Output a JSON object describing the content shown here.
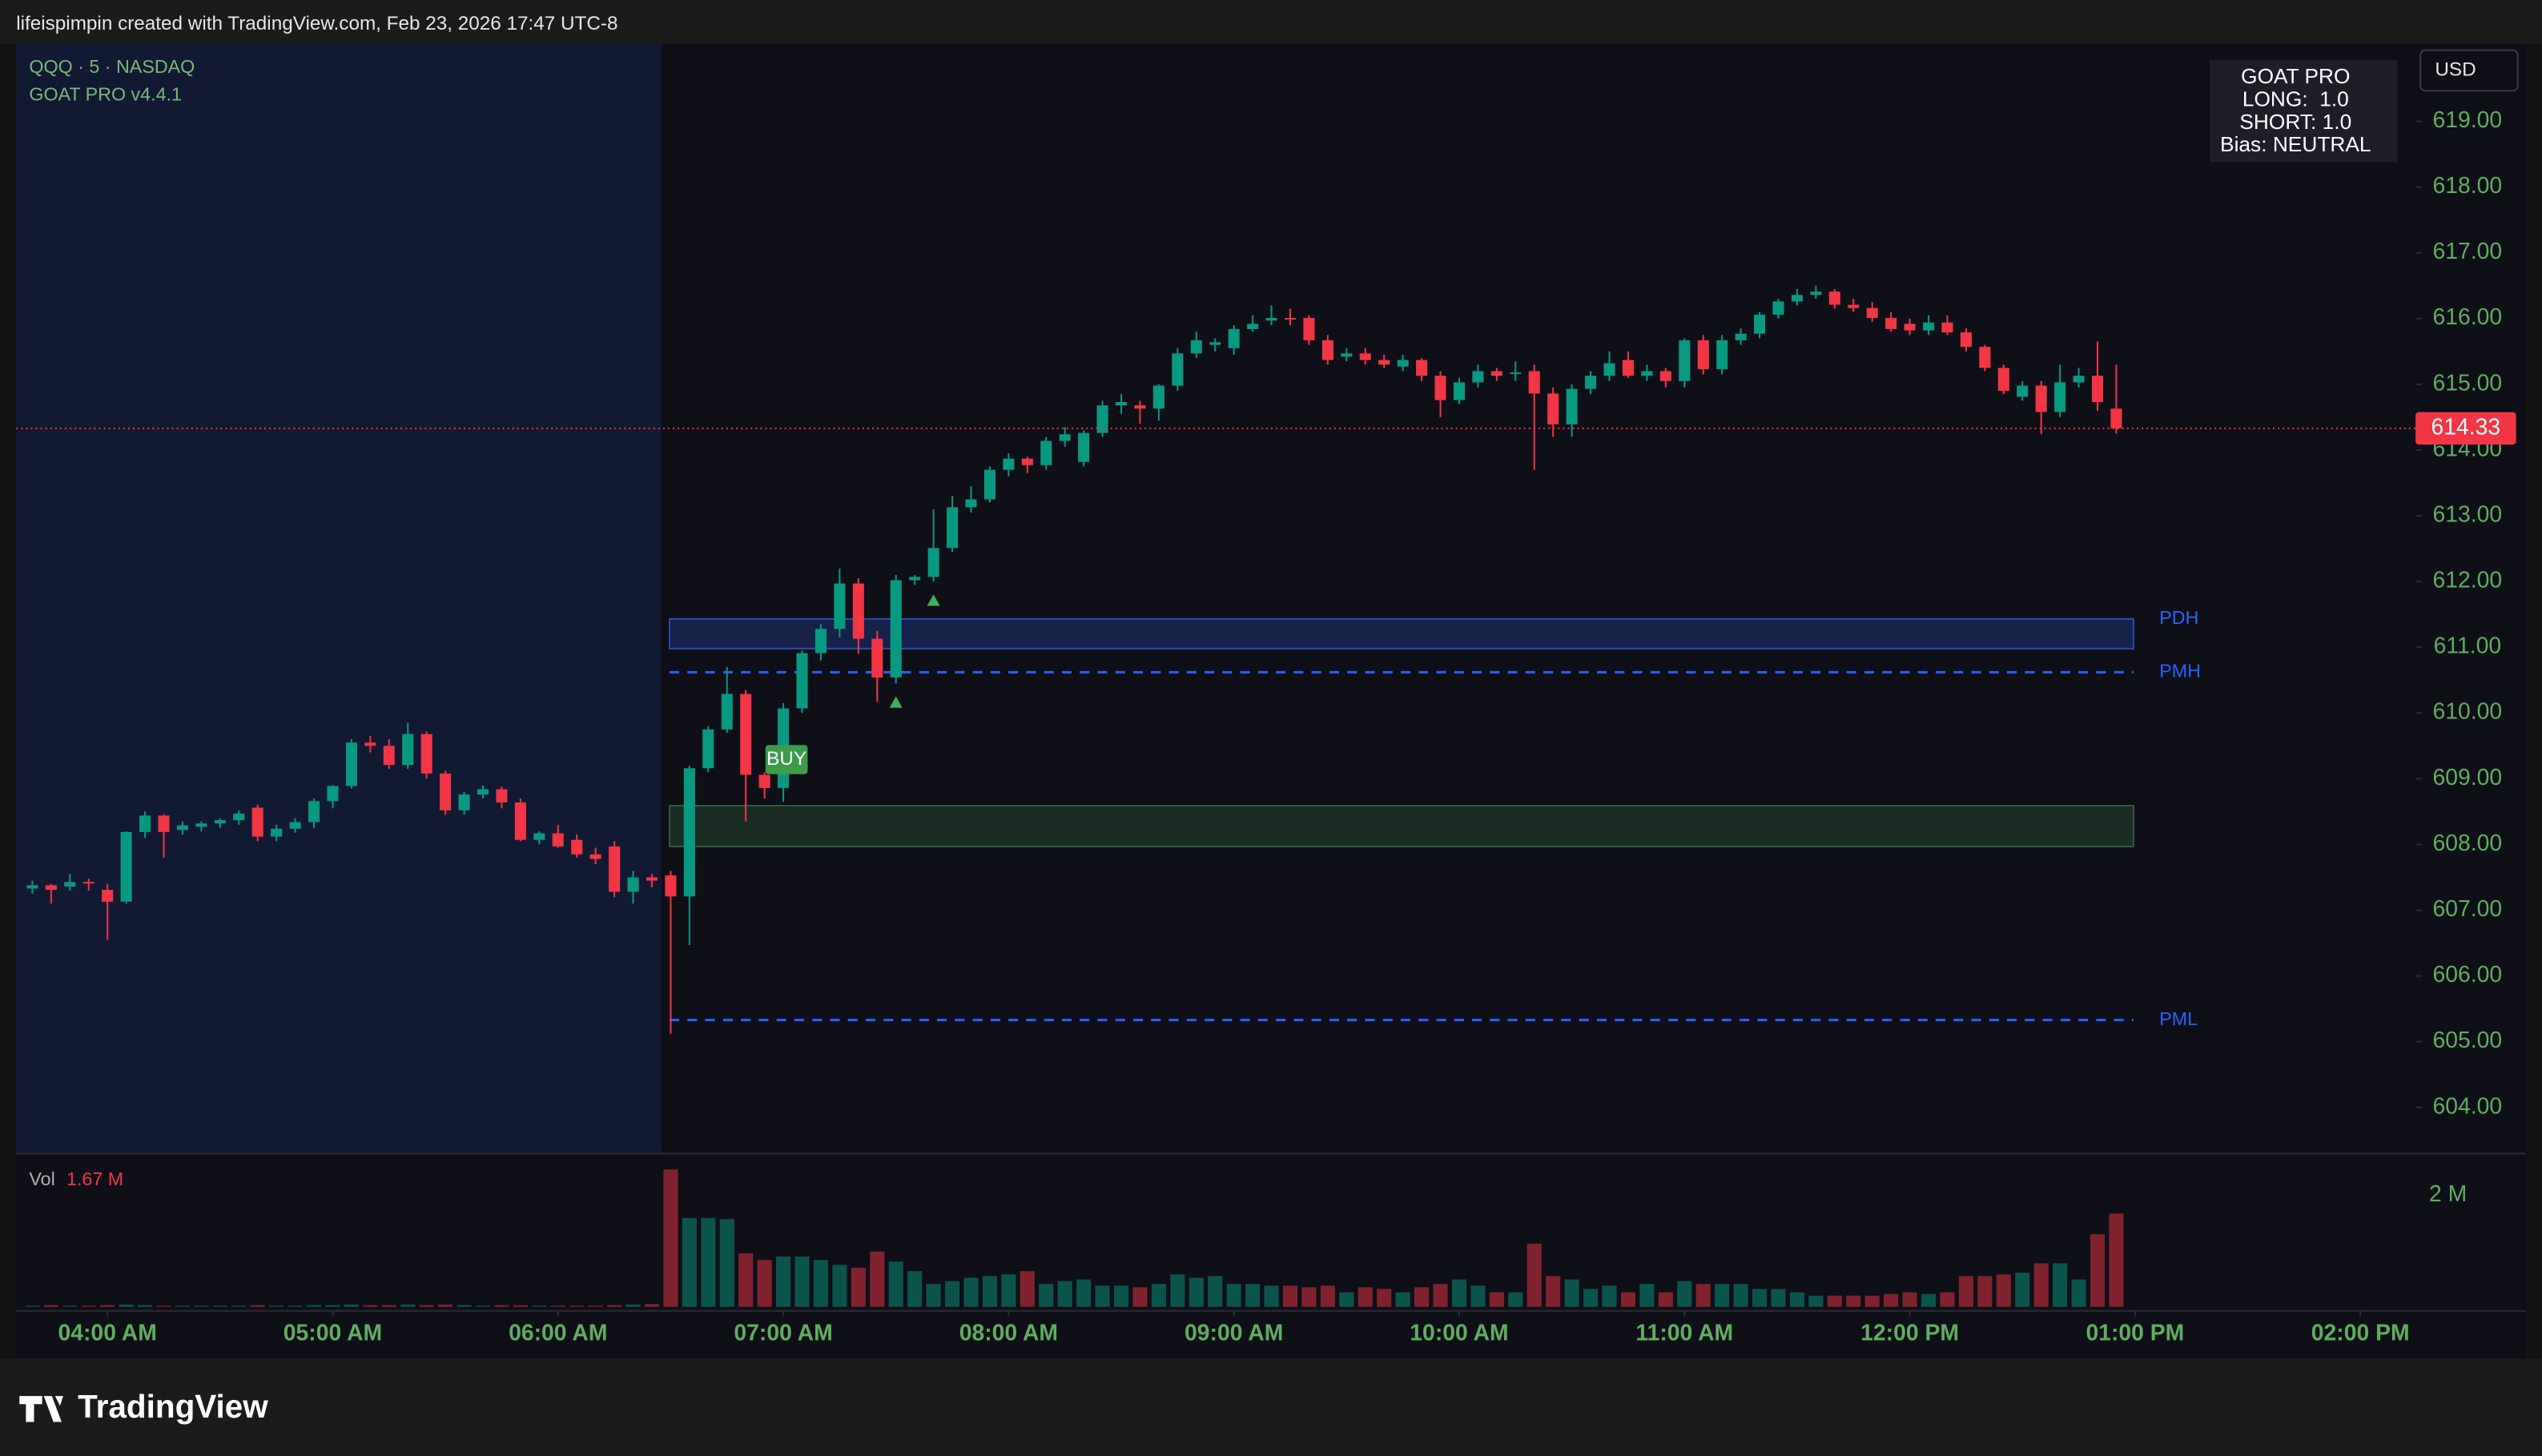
{
  "header": "lifeispimpin created with TradingView.com, Feb 23, 2026 17:47 UTC-8",
  "footer_logo": "TradingView",
  "chart_data": {
    "type": "candlestick",
    "symbol": "QQQ · 5 · NASDAQ",
    "indicator": "GOAT PRO v4.4.1",
    "currency": "USD",
    "info_box": [
      "GOAT PRO",
      "LONG:  1.0",
      "SHORT: 1.0",
      "Bias: NEUTRAL"
    ],
    "up_color": "#089981",
    "down_color": "#f23645",
    "open": [
      607.33,
      607.38,
      607.36,
      607.43,
      607.31,
      607.13,
      608.19,
      608.44,
      608.22,
      608.27,
      608.32,
      608.37,
      608.56,
      608.12,
      608.24,
      608.34,
      608.66,
      608.89,
      609.55,
      609.5,
      609.21,
      609.68,
      609.08,
      608.52,
      608.76,
      608.84,
      608.64,
      608.07,
      608.17,
      608.07,
      607.85,
      607.97,
      607.28,
      607.5,
      607.53,
      607.21,
      609.16,
      609.75,
      610.29,
      609.06,
      608.86,
      610.07,
      610.91,
      611.28,
      611.97,
      611.13,
      610.54,
      612.02,
      612.07,
      612.51,
      613.13,
      613.25,
      613.7,
      613.87,
      613.77,
      614.14,
      613.82,
      614.26,
      614.68,
      614.68,
      614.63,
      614.98,
      615.47,
      615.6,
      615.55,
      615.84,
      615.97,
      616.01,
      616.01,
      615.67,
      615.42,
      615.47,
      615.37,
      615.27,
      615.37,
      615.13,
      614.76,
      615.03,
      615.2,
      615.16,
      615.2,
      614.86,
      614.39,
      614.93,
      615.13,
      615.37,
      615.13,
      615.2,
      615.05,
      615.67,
      615.23,
      615.67,
      615.77,
      616.06,
      616.26,
      616.36,
      616.41,
      616.21,
      616.16,
      616.01,
      615.92,
      615.82,
      615.94,
      615.79,
      615.57,
      615.25,
      614.81,
      614.98,
      614.58,
      615.03,
      615.13,
      614.63
    ],
    "high": [
      607.45,
      607.4,
      607.55,
      607.48,
      607.4,
      608.2,
      608.5,
      608.46,
      608.35,
      608.35,
      608.4,
      608.52,
      608.6,
      608.3,
      608.4,
      608.7,
      608.9,
      609.6,
      609.65,
      609.6,
      609.85,
      609.72,
      609.12,
      608.8,
      608.9,
      608.88,
      608.7,
      608.2,
      608.3,
      608.15,
      607.95,
      608.05,
      607.6,
      607.55,
      607.6,
      609.2,
      609.8,
      610.7,
      610.35,
      609.1,
      610.15,
      610.95,
      611.35,
      612.2,
      612.05,
      611.25,
      612.1,
      612.1,
      613.1,
      613.3,
      613.45,
      613.75,
      613.95,
      613.9,
      614.2,
      614.35,
      614.3,
      614.75,
      614.85,
      614.75,
      615.0,
      615.55,
      615.8,
      615.7,
      615.9,
      616.05,
      616.2,
      616.15,
      616.05,
      615.75,
      615.55,
      615.55,
      615.45,
      615.45,
      615.4,
      615.2,
      615.1,
      615.3,
      615.25,
      615.35,
      615.3,
      614.95,
      615.0,
      615.2,
      615.5,
      615.5,
      615.3,
      615.25,
      615.7,
      615.75,
      615.75,
      615.85,
      616.1,
      616.3,
      616.45,
      616.5,
      616.45,
      616.3,
      616.25,
      616.1,
      616.0,
      616.05,
      616.05,
      615.85,
      615.6,
      615.3,
      615.05,
      615.05,
      615.3,
      615.25,
      615.65,
      615.3
    ],
    "low": [
      607.25,
      607.1,
      607.3,
      607.3,
      606.55,
      607.1,
      608.1,
      607.8,
      608.15,
      608.2,
      608.25,
      608.3,
      608.05,
      608.05,
      608.18,
      608.25,
      608.55,
      608.85,
      609.4,
      609.15,
      609.15,
      609.0,
      608.45,
      608.45,
      608.7,
      608.55,
      608.05,
      608.0,
      607.95,
      607.8,
      607.7,
      607.2,
      607.1,
      607.35,
      605.12,
      606.47,
      609.1,
      609.7,
      608.35,
      608.7,
      608.65,
      610.0,
      610.8,
      611.15,
      610.9,
      610.17,
      610.45,
      611.95,
      612.0,
      612.45,
      613.05,
      613.2,
      613.6,
      613.65,
      613.7,
      614.05,
      613.75,
      614.2,
      614.55,
      614.4,
      614.45,
      614.9,
      615.4,
      615.5,
      615.45,
      615.8,
      615.9,
      615.9,
      615.6,
      615.3,
      615.35,
      615.3,
      615.25,
      615.2,
      615.05,
      614.5,
      614.7,
      614.95,
      615.05,
      615.05,
      613.7,
      614.2,
      614.2,
      614.85,
      615.05,
      615.1,
      615.05,
      614.95,
      614.95,
      615.15,
      615.15,
      615.6,
      615.7,
      616.0,
      616.2,
      616.3,
      616.15,
      616.1,
      615.95,
      615.8,
      615.75,
      615.75,
      615.75,
      615.5,
      615.2,
      614.85,
      614.75,
      614.24,
      614.5,
      614.95,
      614.6,
      614.25
    ],
    "close": [
      607.38,
      607.31,
      607.43,
      607.41,
      607.13,
      608.19,
      608.44,
      608.19,
      608.29,
      608.32,
      608.37,
      608.47,
      608.12,
      608.24,
      608.34,
      608.66,
      608.89,
      609.55,
      609.5,
      609.21,
      609.68,
      609.08,
      608.52,
      608.76,
      608.84,
      608.64,
      608.07,
      608.17,
      607.97,
      607.85,
      607.78,
      607.28,
      607.5,
      607.45,
      607.21,
      609.16,
      609.75,
      610.29,
      609.06,
      608.86,
      610.07,
      610.91,
      611.28,
      611.97,
      611.13,
      610.54,
      612.02,
      612.07,
      612.51,
      613.13,
      613.25,
      613.7,
      613.87,
      613.77,
      614.14,
      614.24,
      614.26,
      614.68,
      614.73,
      614.63,
      614.98,
      615.47,
      615.67,
      615.64,
      615.84,
      615.92,
      616.01,
      615.99,
      615.67,
      615.37,
      615.47,
      615.37,
      615.3,
      615.37,
      615.13,
      614.76,
      615.03,
      615.2,
      615.13,
      615.18,
      614.86,
      614.39,
      614.93,
      615.13,
      615.32,
      615.13,
      615.2,
      615.05,
      615.67,
      615.23,
      615.67,
      615.77,
      616.06,
      616.26,
      616.36,
      616.41,
      616.21,
      616.16,
      616.01,
      615.84,
      615.82,
      615.94,
      615.79,
      615.57,
      615.25,
      614.9,
      614.98,
      614.58,
      615.03,
      615.13,
      614.73,
      614.33
    ],
    "ylim": [
      603.31,
      620.18
    ],
    "yticks": [
      {
        "value": 604,
        "label": "604.00"
      },
      {
        "value": 605,
        "label": "605.00"
      },
      {
        "value": 606,
        "label": "606.00"
      },
      {
        "value": 607,
        "label": "607.00"
      },
      {
        "value": 608,
        "label": "608.00"
      },
      {
        "value": 609,
        "label": "609.00"
      },
      {
        "value": 610,
        "label": "610.00"
      },
      {
        "value": 611,
        "label": "611.00"
      },
      {
        "value": 612,
        "label": "612.00"
      },
      {
        "value": 613,
        "label": "613.00"
      },
      {
        "value": 614,
        "label": "614.00"
      },
      {
        "value": 615,
        "label": "615.00"
      },
      {
        "value": 616,
        "label": "616.00"
      },
      {
        "value": 617,
        "label": "617.00"
      },
      {
        "value": 618,
        "label": "618.00"
      },
      {
        "value": 619,
        "label": "619.00"
      }
    ],
    "xlim": [
      -0.86,
      126.94
    ],
    "xticks": [
      {
        "value": 4,
        "label": "04:00 AM"
      },
      {
        "value": 16,
        "label": "05:00 AM"
      },
      {
        "value": 28,
        "label": "06:00 AM"
      },
      {
        "value": 40,
        "label": "07:00 AM"
      },
      {
        "value": 52,
        "label": "08:00 AM"
      },
      {
        "value": 64,
        "label": "09:00 AM"
      },
      {
        "value": 76,
        "label": "10:00 AM"
      },
      {
        "value": 88,
        "label": "11:00 AM"
      },
      {
        "value": 100,
        "label": "12:00 PM"
      },
      {
        "value": 112,
        "label": "01:00 PM"
      },
      {
        "value": 124,
        "label": "02:00 PM"
      }
    ],
    "volume_name": "Vol",
    "volume_label": "1.67 M",
    "volume": [
      0.02,
      0.03,
      0.02,
      0.02,
      0.03,
      0.04,
      0.03,
      0.02,
      0.02,
      0.02,
      0.02,
      0.02,
      0.03,
      0.02,
      0.02,
      0.03,
      0.03,
      0.04,
      0.03,
      0.03,
      0.04,
      0.03,
      0.04,
      0.03,
      0.02,
      0.03,
      0.03,
      0.02,
      0.02,
      0.02,
      0.02,
      0.03,
      0.04,
      0.05,
      2.46,
      1.59,
      1.59,
      1.57,
      0.96,
      0.84,
      0.9,
      0.9,
      0.84,
      0.75,
      0.7,
      0.99,
      0.81,
      0.64,
      0.41,
      0.46,
      0.52,
      0.55,
      0.58,
      0.64,
      0.41,
      0.46,
      0.49,
      0.38,
      0.38,
      0.35,
      0.41,
      0.58,
      0.52,
      0.55,
      0.41,
      0.41,
      0.38,
      0.38,
      0.35,
      0.38,
      0.26,
      0.35,
      0.32,
      0.26,
      0.35,
      0.41,
      0.49,
      0.38,
      0.26,
      0.26,
      1.13,
      0.55,
      0.49,
      0.32,
      0.38,
      0.26,
      0.41,
      0.26,
      0.46,
      0.41,
      0.41,
      0.41,
      0.32,
      0.32,
      0.26,
      0.2,
      0.2,
      0.2,
      0.2,
      0.23,
      0.26,
      0.23,
      0.26,
      0.55,
      0.55,
      0.58,
      0.61,
      0.78,
      0.78,
      0.49,
      1.3,
      1.67
    ],
    "volume_ylim": [
      0,
      2.7
    ],
    "volume_yticks": [
      {
        "value": 2,
        "label": "2 M"
      }
    ],
    "levels": [
      {
        "name": "PDH",
        "low": 610.98,
        "high": 611.43
      },
      {
        "name": "PMH",
        "value": 610.62
      },
      {
        "name": "PML",
        "value": 605.33
      }
    ],
    "zone": {
      "low": 607.97,
      "high": 608.59
    },
    "buy_signal": {
      "label": "BUY",
      "x": 40
    },
    "up_arrows": [
      46,
      48
    ]
  }
}
